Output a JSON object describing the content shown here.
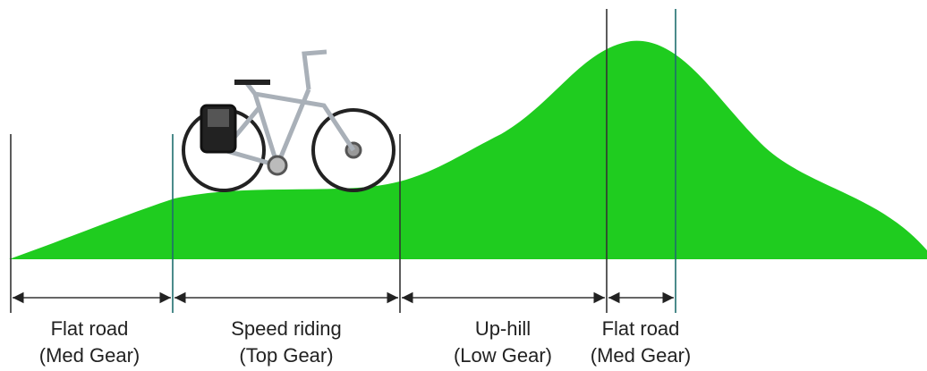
{
  "segments": [
    {
      "name": "Flat road",
      "gear": "(Med Gear)"
    },
    {
      "name": "Speed riding",
      "gear": "(Top Gear)"
    },
    {
      "name": "Up-hill",
      "gear": "(Low Gear)"
    },
    {
      "name": "Flat road",
      "gear": "(Med Gear)"
    }
  ]
}
